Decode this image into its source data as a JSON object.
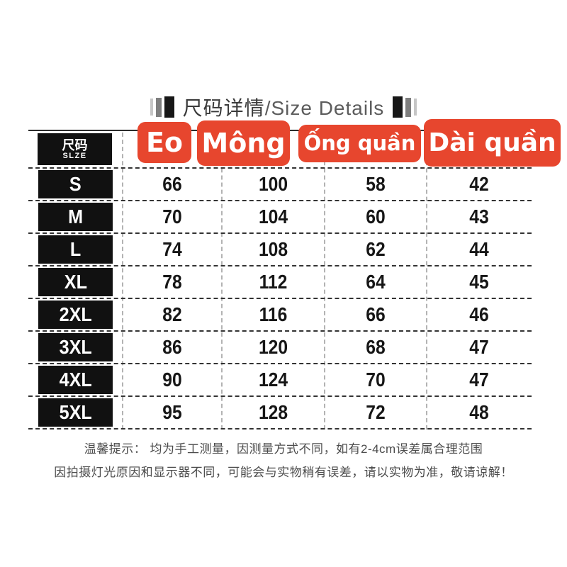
{
  "title": {
    "cn": "尺码详情",
    "en": "/Size Details"
  },
  "table": {
    "size_header": {
      "cn": "尺码",
      "en": "SLZE"
    },
    "columns": [
      {
        "label": "Eo"
      },
      {
        "label": "Mông"
      },
      {
        "label": "Ống quần"
      },
      {
        "label": "Dài quần"
      }
    ],
    "rows": [
      {
        "size": "S",
        "values": [
          "66",
          "100",
          "58",
          "42"
        ]
      },
      {
        "size": "M",
        "values": [
          "70",
          "104",
          "60",
          "43"
        ]
      },
      {
        "size": "L",
        "values": [
          "74",
          "108",
          "62",
          "44"
        ]
      },
      {
        "size": "XL",
        "values": [
          "78",
          "112",
          "64",
          "45"
        ]
      },
      {
        "size": "2XL",
        "values": [
          "82",
          "116",
          "66",
          "46"
        ]
      },
      {
        "size": "3XL",
        "values": [
          "86",
          "120",
          "68",
          "47"
        ]
      },
      {
        "size": "4XL",
        "values": [
          "90",
          "124",
          "70",
          "47"
        ]
      },
      {
        "size": "5XL",
        "values": [
          "95",
          "128",
          "72",
          "48"
        ]
      }
    ]
  },
  "notes": {
    "line1": "温馨提示： 均为手工测量，因测量方式不同，如有2-4cm误差属合理范围",
    "line2": "因拍摄灯光原因和显示器不同，可能会与实物稍有误差，请以实物为准，敬请谅解！"
  },
  "colors": {
    "accent_red": "#e7462e",
    "box_black": "#111111",
    "title_gray": "#3a3a3a",
    "note_gray": "#4c4c4c"
  },
  "chart_data": {
    "type": "table",
    "title": "尺码详情/Size Details",
    "columns": [
      "尺码/SLZE",
      "Eo",
      "Mông",
      "Ống quần",
      "Dài quần"
    ],
    "rows": [
      [
        "S",
        66,
        100,
        58,
        42
      ],
      [
        "M",
        70,
        104,
        60,
        43
      ],
      [
        "L",
        74,
        108,
        62,
        44
      ],
      [
        "XL",
        78,
        112,
        64,
        45
      ],
      [
        "2XL",
        82,
        116,
        66,
        46
      ],
      [
        "3XL",
        86,
        120,
        68,
        47
      ],
      [
        "4XL",
        90,
        124,
        70,
        47
      ],
      [
        "5XL",
        95,
        128,
        72,
        48
      ]
    ],
    "notes": [
      "温馨提示： 均为手工测量，因测量方式不同，如有2-4cm误差属合理范围",
      "因拍摄灯光原因和显示器不同，可能会与实物稍有误差，请以实物为准，敬请谅解！"
    ]
  }
}
